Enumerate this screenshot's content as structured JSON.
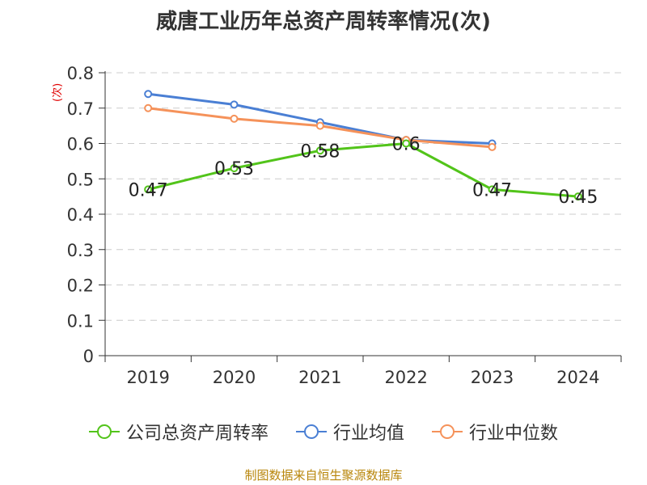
{
  "chart_data": {
    "type": "line",
    "title": "威唐工业历年总资产周转率情况(次)",
    "ylabel": "(次)",
    "xlabel": "",
    "categories": [
      "2019",
      "2020",
      "2021",
      "2022",
      "2023",
      "2024"
    ],
    "yticks": [
      "0",
      "0.1",
      "0.2",
      "0.3",
      "0.4",
      "0.5",
      "0.6",
      "0.7",
      "0.8"
    ],
    "ylim": [
      0,
      0.8
    ],
    "grid": true,
    "legend_position": "bottom",
    "series": [
      {
        "name": "公司总资产周转率",
        "color": "#52c41a",
        "values": [
          0.47,
          0.53,
          0.58,
          0.6,
          0.47,
          0.45
        ],
        "labels": [
          "0.47",
          "0.53",
          "0.58",
          "0.6",
          "0.47",
          "0.45"
        ]
      },
      {
        "name": "行业均值",
        "color": "#4a7fd4",
        "values": [
          0.74,
          0.71,
          0.66,
          0.61,
          0.6,
          null
        ]
      },
      {
        "name": "行业中位数",
        "color": "#f5925a",
        "values": [
          0.7,
          0.67,
          0.65,
          0.61,
          0.59,
          null
        ]
      }
    ]
  },
  "footer": {
    "source": "制图数据来自恒生聚源数据库"
  }
}
